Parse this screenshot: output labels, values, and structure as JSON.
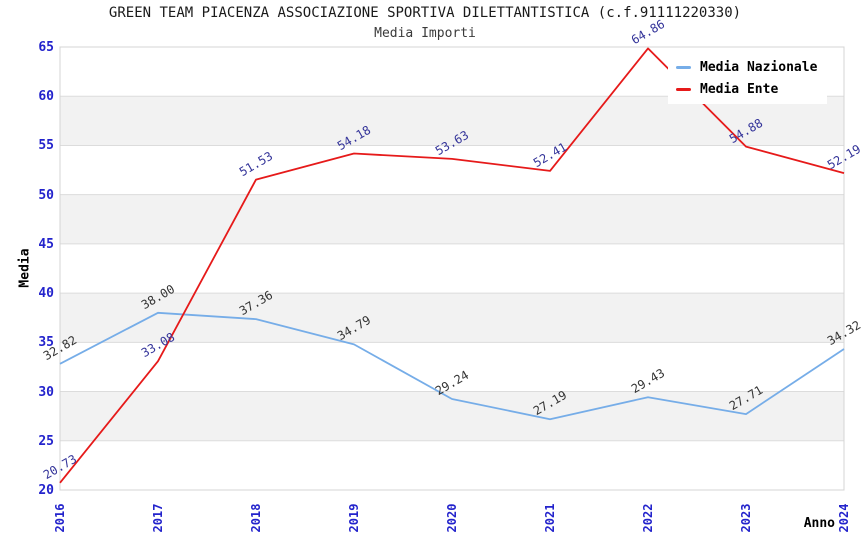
{
  "chart_data": {
    "type": "line",
    "title": "GREEN TEAM PIACENZA ASSOCIAZIONE SPORTIVA DILETTANTISTICA (c.f.91111220330)",
    "subtitle": "Media Importi",
    "xlabel": "Anno",
    "ylabel": "Media",
    "categories": [
      "2016",
      "2017",
      "2018",
      "2019",
      "2020",
      "2021",
      "2022",
      "2023",
      "2024"
    ],
    "ylim": [
      20,
      65
    ],
    "ytick_step": 5,
    "grid": "horizontal-bands",
    "legend_position": "top-right-inside",
    "series": [
      {
        "name": "Media Nazionale",
        "color": "#76ade8",
        "label_color": "#333333",
        "values": [
          32.82,
          38.0,
          37.36,
          34.79,
          29.24,
          27.19,
          29.43,
          27.71,
          34.32
        ]
      },
      {
        "name": "Media Ente",
        "color": "#e61a1a",
        "label_color": "#333399",
        "values": [
          20.73,
          33.08,
          51.53,
          54.18,
          53.63,
          52.41,
          64.86,
          54.88,
          52.19
        ]
      }
    ],
    "colors": {
      "axis_tick_label": "#2323cc",
      "band_fill": "#f2f2f2",
      "gridline": "#dcdcdc",
      "plot_border": "#d4d4d4",
      "title": "#1a1a1a",
      "subtitle": "#3a3a3a"
    }
  }
}
